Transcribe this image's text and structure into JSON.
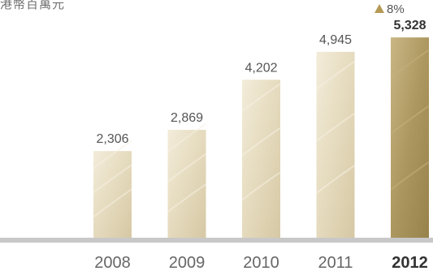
{
  "chart_data": {
    "type": "bar",
    "unit_label": "港幣百萬元",
    "categories": [
      "2008",
      "2009",
      "2010",
      "2011",
      "2012"
    ],
    "values": [
      2306,
      2869,
      4202,
      4945,
      5328
    ],
    "value_labels": [
      "2,306",
      "2,869",
      "4,202",
      "4,945",
      "5,328"
    ],
    "highlight_index": 4,
    "growth_label": "8%",
    "ylim": [
      0,
      6000
    ],
    "grid": false,
    "colors": {
      "bar_light": "#ece4cf",
      "bar_light_shade": "#d9ccab",
      "bar_highlight": "#b49f68",
      "bar_highlight_shade": "#9c8650",
      "growth_arrow": "#b59a55",
      "baseline": "#c8c8c8",
      "text": "#555555",
      "text_strong": "#333333"
    }
  }
}
